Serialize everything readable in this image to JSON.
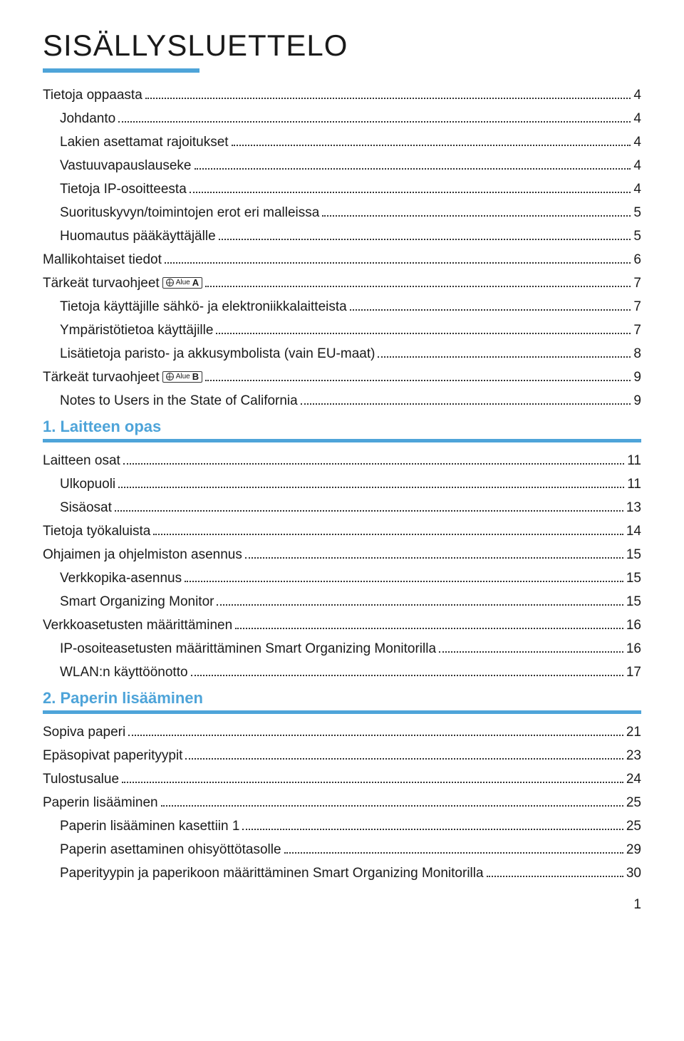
{
  "title": "SISÄLLYSLUETTELO",
  "accent_color": "#4ea4d9",
  "badge_region_label": "Alue",
  "page_number": "1",
  "sections": [
    {
      "header": null,
      "entries": [
        {
          "label": "Tietoja oppaasta",
          "page": "4",
          "indent": 1
        },
        {
          "label": "Johdanto",
          "page": "4",
          "indent": 2
        },
        {
          "label": "Lakien asettamat rajoitukset",
          "page": "4",
          "indent": 2
        },
        {
          "label": "Vastuuvapauslauseke",
          "page": "4",
          "indent": 2
        },
        {
          "label": "Tietoja IP-osoitteesta",
          "page": "4",
          "indent": 2
        },
        {
          "label": "Suorituskyvyn/toimintojen erot eri malleissa",
          "page": "5",
          "indent": 2
        },
        {
          "label": "Huomautus pääkäyttäjälle",
          "page": "5",
          "indent": 2
        },
        {
          "label": "Mallikohtaiset tiedot",
          "page": "6",
          "indent": 1
        },
        {
          "label": "Tärkeät turvaohjeet",
          "page": "7",
          "indent": 1,
          "badge": "A"
        },
        {
          "label": "Tietoja käyttäjille sähkö- ja elektroniikkalaitteista",
          "page": "7",
          "indent": 2
        },
        {
          "label": "Ympäristötietoa käyttäjille",
          "page": "7",
          "indent": 2
        },
        {
          "label": "Lisätietoja paristo- ja akkusymbolista (vain EU-maat)",
          "page": "8",
          "indent": 2
        },
        {
          "label": "Tärkeät turvaohjeet",
          "page": "9",
          "indent": 1,
          "badge": "B"
        },
        {
          "label": "Notes to Users in the State of California",
          "page": "9",
          "indent": 2
        }
      ]
    },
    {
      "header": "1. Laitteen opas",
      "entries": [
        {
          "label": "Laitteen osat",
          "page": "11",
          "indent": 1
        },
        {
          "label": "Ulkopuoli",
          "page": "11",
          "indent": 2
        },
        {
          "label": "Sisäosat",
          "page": "13",
          "indent": 2
        },
        {
          "label": "Tietoja työkaluista",
          "page": "14",
          "indent": 1
        },
        {
          "label": "Ohjaimen ja ohjelmiston asennus",
          "page": "15",
          "indent": 1
        },
        {
          "label": "Verkkopika-asennus",
          "page": "15",
          "indent": 2
        },
        {
          "label": "Smart Organizing Monitor",
          "page": "15",
          "indent": 2
        },
        {
          "label": "Verkkoasetusten määrittäminen",
          "page": "16",
          "indent": 1
        },
        {
          "label": "IP-osoiteasetusten määrittäminen Smart Organizing Monitorilla",
          "page": "16",
          "indent": 2
        },
        {
          "label": "WLAN:n käyttöönotto",
          "page": "17",
          "indent": 2
        }
      ]
    },
    {
      "header": "2. Paperin lisääminen",
      "entries": [
        {
          "label": "Sopiva paperi",
          "page": "21",
          "indent": 1
        },
        {
          "label": "Epäsopivat paperityypit",
          "page": "23",
          "indent": 1
        },
        {
          "label": "Tulostusalue",
          "page": "24",
          "indent": 1
        },
        {
          "label": "Paperin lisääminen",
          "page": "25",
          "indent": 1
        },
        {
          "label": "Paperin lisääminen kasettiin 1",
          "page": "25",
          "indent": 2
        },
        {
          "label": "Paperin asettaminen ohisyöttötasolle",
          "page": "29",
          "indent": 2
        },
        {
          "label": "Paperityypin ja paperikoon määrittäminen Smart Organizing Monitorilla",
          "page": "30",
          "indent": 2
        }
      ]
    }
  ]
}
